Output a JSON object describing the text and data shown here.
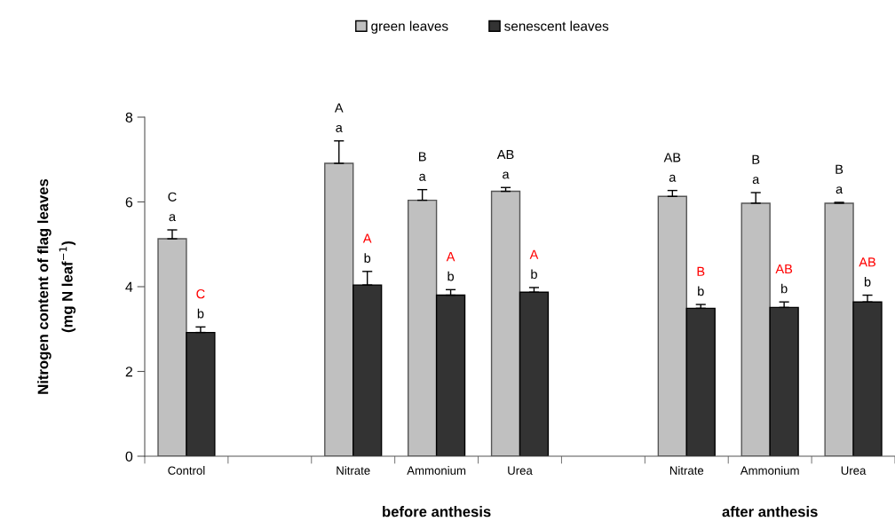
{
  "chart_data": {
    "type": "bar",
    "categories": [
      "Control",
      null,
      "Nitrate",
      "Ammonium",
      "Urea",
      null,
      "Nitrate",
      "Ammonium",
      "Urea"
    ],
    "ylabel": "Nitrogen content of flag leaves\n(mg N leaf$^{−1}$)",
    "series": [
      {
        "name": "green leaves",
        "color": "#c0c0c0",
        "values": [
          5.13,
          null,
          6.91,
          6.04,
          6.25,
          null,
          6.13,
          5.97,
          5.97
        ],
        "errors": [
          [
            5.13,
            5.34
          ],
          null,
          [
            6.91,
            7.44
          ],
          [
            6.04,
            6.29
          ],
          [
            6.25,
            6.34
          ],
          null,
          [
            6.13,
            6.27
          ],
          [
            5.97,
            6.22
          ],
          [
            5.97,
            5.99
          ]
        ],
        "value_labels": [
          "C\na",
          null,
          "A\na",
          "B\na",
          "AB\na",
          null,
          "AB\na",
          "B\na",
          "B\na"
        ]
      },
      {
        "name": "senescent leaves",
        "color": "#333333",
        "values": [
          2.92,
          null,
          4.04,
          3.8,
          3.87,
          null,
          3.49,
          3.51,
          3.64
        ],
        "errors": [
          [
            2.92,
            3.05
          ],
          null,
          [
            4.04,
            4.36
          ],
          [
            3.8,
            3.93
          ],
          [
            3.87,
            3.98
          ],
          null,
          [
            3.49,
            3.58
          ],
          [
            3.51,
            3.64
          ],
          [
            3.64,
            3.8
          ]
        ],
        "value_labels": [
          "C\nb",
          null,
          "A\nb",
          "A\nb",
          "A\nb",
          null,
          "B\nb",
          "AB\nb",
          "AB\nb"
        ]
      }
    ],
    "ylim": [
      0,
      8
    ],
    "yticks": [
      0,
      2,
      4,
      6,
      8
    ],
    "grid": false,
    "legend": "top",
    "annotations": [
      "before anthesis",
      "after anthesis"
    ]
  }
}
